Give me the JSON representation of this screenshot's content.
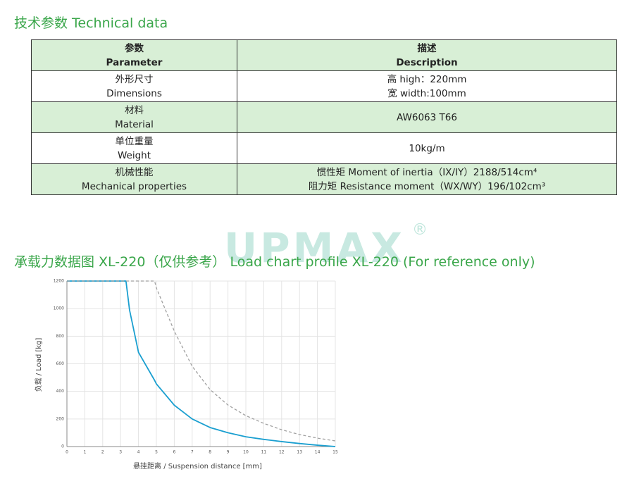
{
  "header": {
    "title": "技术参数 Technical data"
  },
  "table": {
    "header": [
      [
        "参数",
        "Parameter"
      ],
      [
        "描述",
        "Description"
      ]
    ],
    "rows": [
      [
        [
          "外形尺寸",
          "Dimensions"
        ],
        [
          "高 high：220mm",
          "宽 width:100mm"
        ]
      ],
      [
        [
          "材料",
          "Material"
        ],
        [
          "AW6063 T66"
        ]
      ],
      [
        [
          "单位重量",
          "Weight"
        ],
        [
          "10kg/m"
        ]
      ],
      [
        [
          "机械性能",
          "Mechanical properties"
        ],
        [
          "惯性矩 Moment of inertia（IX/IY）2188/514cm⁴",
          "阻力矩 Resistance moment（WX/WY）196/102cm³"
        ]
      ]
    ]
  },
  "watermark": {
    "text": "UPMAX",
    "mark": "®"
  },
  "chart_section": {
    "title": "承载力数据图 XL-220（仅供参考） Load chart profile XL-220 (For reference only)"
  },
  "chart_data": {
    "type": "line",
    "x_label": "悬挂距离 / Suspension distance [mm]",
    "y_label": "负载 / Load [kg]",
    "x": [
      0,
      3.3,
      3.5,
      4,
      4.9,
      5,
      6,
      7,
      8,
      9,
      10,
      11,
      12,
      13,
      14,
      15
    ],
    "series": [
      {
        "color": "#1a9fd0",
        "dash": false,
        "values": [
          1200,
          1200,
          990,
          683,
          480,
          454,
          300,
          200,
          138,
          100,
          71,
          52,
          36,
          22,
          10,
          0
        ]
      },
      {
        "color": "#a0a0a0",
        "dash": true,
        "values": [
          1200,
          1200,
          1200,
          1200,
          1200,
          1150,
          837,
          582,
          413,
          301,
          224,
          168,
          122,
          87,
          61,
          41
        ]
      }
    ],
    "xlim": [
      0,
      15
    ],
    "ylim": [
      0,
      1200
    ],
    "xticks": [
      0,
      1,
      2,
      3,
      4,
      5,
      6,
      7,
      8,
      9,
      10,
      11,
      12,
      13,
      14,
      15
    ],
    "yticks": [
      0,
      200,
      400,
      600,
      800,
      1000,
      1200
    ],
    "grid": true
  }
}
